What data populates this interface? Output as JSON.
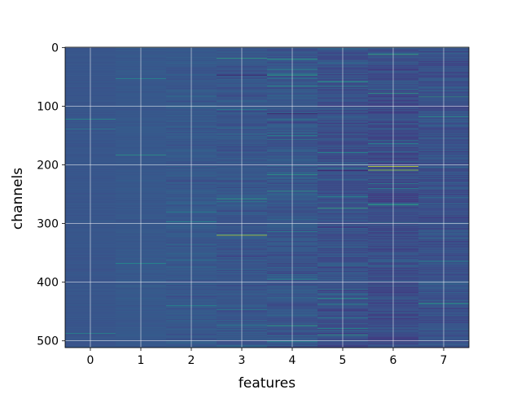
{
  "chart_data": {
    "type": "heatmap",
    "title": "",
    "xlabel": "features",
    "ylabel": "channels",
    "x_ticks": [
      0,
      1,
      2,
      3,
      4,
      5,
      6,
      7
    ],
    "y_ticks": [
      0,
      100,
      200,
      300,
      400,
      500
    ],
    "x_range": [
      -0.5,
      7.5
    ],
    "y_range": [
      -0.5,
      511.5
    ],
    "y_inverted": true,
    "n_channels": 512,
    "n_features": 8,
    "colormap": "viridis",
    "background_value": 0.28,
    "grid": true,
    "grid_color": "#ffffff",
    "per_feature": [
      {
        "feature": 0,
        "base": 0.27,
        "noise": 0.025
      },
      {
        "feature": 1,
        "base": 0.28,
        "noise": 0.03
      },
      {
        "feature": 2,
        "base": 0.28,
        "noise": 0.07
      },
      {
        "feature": 3,
        "base": 0.27,
        "noise": 0.09
      },
      {
        "feature": 4,
        "base": 0.27,
        "noise": 0.11
      },
      {
        "feature": 5,
        "base": 0.25,
        "noise": 0.11
      },
      {
        "feature": 6,
        "base": 0.24,
        "noise": 0.12
      },
      {
        "feature": 7,
        "base": 0.26,
        "noise": 0.11
      }
    ],
    "highlights": [
      {
        "feature": 3,
        "channel": 18,
        "value": 0.62
      },
      {
        "feature": 3,
        "channel": 47,
        "value": 0.05
      },
      {
        "feature": 3,
        "channel": 258,
        "value": 0.6
      },
      {
        "feature": 3,
        "channel": 320,
        "value": 0.9
      },
      {
        "feature": 4,
        "channel": 20,
        "value": 0.6
      },
      {
        "feature": 4,
        "channel": 47,
        "value": 0.6
      },
      {
        "feature": 4,
        "channel": 113,
        "value": 0.05
      },
      {
        "feature": 4,
        "channel": 217,
        "value": 0.6
      },
      {
        "feature": 4,
        "channel": 474,
        "value": 0.62
      },
      {
        "feature": 5,
        "channel": 58,
        "value": 0.58
      },
      {
        "feature": 5,
        "channel": 210,
        "value": 0.05
      },
      {
        "feature": 5,
        "channel": 274,
        "value": 0.65
      },
      {
        "feature": 5,
        "channel": 490,
        "value": 0.6
      },
      {
        "feature": 6,
        "channel": 12,
        "value": 0.65
      },
      {
        "feature": 6,
        "channel": 78,
        "value": 0.6
      },
      {
        "feature": 6,
        "channel": 203,
        "value": 0.95
      },
      {
        "feature": 6,
        "channel": 209,
        "value": 0.85
      },
      {
        "feature": 6,
        "channel": 268,
        "value": 0.6
      },
      {
        "feature": 7,
        "channel": 84,
        "value": 0.6
      },
      {
        "feature": 7,
        "channel": 118,
        "value": 0.55
      }
    ]
  }
}
